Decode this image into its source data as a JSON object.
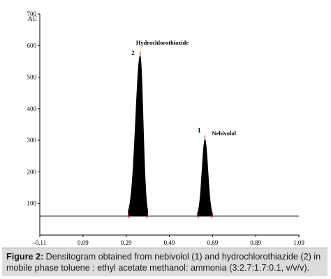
{
  "chart_data": {
    "type": "line",
    "ylabel": "AU",
    "xlim": [
      -0.11,
      1.09
    ],
    "ylim": [
      0,
      700
    ],
    "x_ticks": [
      "-0.11",
      "0.09",
      "0.29",
      "0.49",
      "0.69",
      "0.89",
      "1.09"
    ],
    "y_ticks": [
      "100",
      "200",
      "300",
      "400",
      "500",
      "600",
      "700"
    ],
    "baseline": 60,
    "peaks": [
      {
        "number": "2",
        "name": "Hydrochlorothiazide",
        "rf": 0.355,
        "height": 568,
        "start": 0.3,
        "end": 0.39
      },
      {
        "number": "1",
        "name": "Nebivolol",
        "rf": 0.655,
        "height": 302,
        "start": 0.62,
        "end": 0.69
      }
    ],
    "grid": false,
    "line_color": "#000000",
    "fill_color": "#000000",
    "marker_color": "#cc0000"
  },
  "caption": {
    "label": "Figure 2:",
    "text": " Densitogram obtained from nebivolol (1) and hydrochlorothiazide (2) in mobile phase toluene : ethyl acetate methanol: ammonia (3:2.7:1.7:0.1, v/v/v)."
  }
}
